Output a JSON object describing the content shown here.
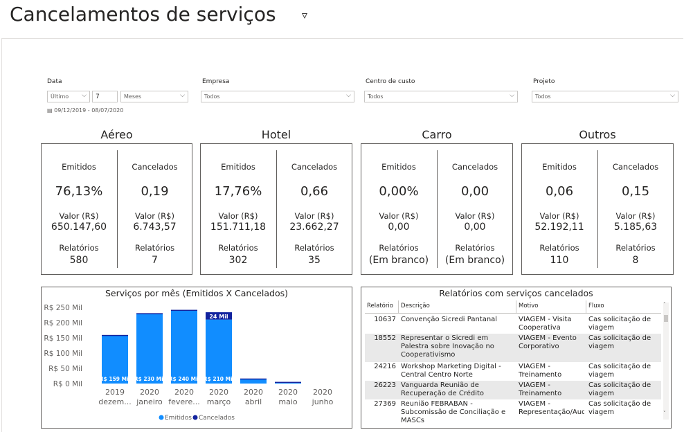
{
  "header": {
    "title": "Cancelamentos de serviços",
    "chevron": "▿"
  },
  "filters": {
    "data": {
      "label": "Data",
      "mode": "Último",
      "count": "7",
      "unit": "Meses",
      "range": "09/12/2019 - 08/07/2020"
    },
    "empresa": {
      "label": "Empresa",
      "value": "Todos"
    },
    "centro": {
      "label": "Centro de custo",
      "value": "Todos"
    },
    "projeto": {
      "label": "Projeto",
      "value": "Todos"
    }
  },
  "cards": [
    {
      "title": "Aéreo",
      "emitidos": {
        "label": "Emitidos",
        "pct": "76,13%",
        "valor_label": "Valor (R$)",
        "valor": "650.147,60",
        "rel_label": "Relatórios",
        "rel": "580"
      },
      "cancelados": {
        "label": "Cancelados",
        "pct": "0,19",
        "valor_label": "Valor (R$)",
        "valor": "6.743,57",
        "rel_label": "Relatórios",
        "rel": "7"
      }
    },
    {
      "title": "Hotel",
      "emitidos": {
        "label": "Emitidos",
        "pct": "17,76%",
        "valor_label": "Valor (R$)",
        "valor": "151.711,18",
        "rel_label": "Relatórios",
        "rel": "302"
      },
      "cancelados": {
        "label": "Cancelados",
        "pct": "0,66",
        "valor_label": "Valor (R$)",
        "valor": "23.662,27",
        "rel_label": "Relatórios",
        "rel": "35"
      }
    },
    {
      "title": "Carro",
      "emitidos": {
        "label": "Emitidos",
        "pct": "0,00%",
        "valor_label": "Valor (R$)",
        "valor": "0,00",
        "rel_label": "Relatórios",
        "rel": "(Em branco)"
      },
      "cancelados": {
        "label": "Cancelados",
        "pct": "0,00",
        "valor_label": "Valor (R$)",
        "valor": "0,00",
        "rel_label": "Relatórios",
        "rel": "(Em branco)"
      }
    },
    {
      "title": "Outros",
      "emitidos": {
        "label": "Emitidos",
        "pct": "0,06",
        "valor_label": "Valor (R$)",
        "valor": "52.192,11",
        "rel_label": "Relatórios",
        "rel": "110"
      },
      "cancelados": {
        "label": "Cancelados",
        "pct": "0,15",
        "valor_label": "Valor (R$)",
        "valor": "5.185,63",
        "rel_label": "Relatórios",
        "rel": "8"
      }
    }
  ],
  "chart_data": {
    "type": "bar",
    "title": "Serviços por mês (Emitidos X Cancelados)",
    "categories": [
      [
        "2019",
        "dezem..."
      ],
      [
        "2020",
        "janeiro"
      ],
      [
        "2020",
        "fevere..."
      ],
      [
        "2020",
        "março"
      ],
      [
        "2020",
        "abril"
      ],
      [
        "2020",
        "maio"
      ],
      [
        "2020",
        "junho"
      ]
    ],
    "series": [
      {
        "name": "Emitidos",
        "color": "#118dff",
        "values": [
          159,
          230,
          240,
          210,
          15,
          5,
          0
        ],
        "labels": [
          "R$ 159 Mil",
          "R$ 230 Mil",
          "R$ 240 Mil",
          "R$ 210 Mil",
          "",
          "",
          ""
        ]
      },
      {
        "name": "Cancelados",
        "color": "#12239e",
        "values": [
          0.5,
          1,
          2,
          24,
          1.5,
          0.5,
          0
        ],
        "labels": [
          "",
          "",
          "",
          "24 Mil",
          "",
          "",
          ""
        ]
      }
    ],
    "stacked": true,
    "ylim": [
      0,
      250
    ],
    "yticks": [
      0,
      50,
      100,
      150,
      200,
      250
    ],
    "ytick_labels": [
      "R$ 0 Mil",
      "R$ 50 Mil",
      "R$ 100 Mil",
      "R$ 150 Mil",
      "R$ 200 Mil",
      "R$ 250 Mil"
    ],
    "legend": "bottom-center",
    "grid": false
  },
  "table": {
    "title": "Relatórios com serviços cancelados",
    "columns": [
      "Relatório",
      "Descrição",
      "Motivo",
      "Fluxo"
    ],
    "rows": [
      {
        "id": "10637",
        "desc": "Convenção Sicredi Pantanal",
        "motivo": "VIAGEM - Visita Cooperativa",
        "fluxo": "Cas solicitação de viagem"
      },
      {
        "id": "18552",
        "desc": "Representar o Sicredi em Palestra sobre Inovação no Cooperativismo",
        "motivo": "VIAGEM - Evento Corporativo",
        "fluxo": "Cas solicitação de viagem"
      },
      {
        "id": "24216",
        "desc": "Workshop Marketing Digital - Central Centro Norte",
        "motivo": "VIAGEM - Treinamento",
        "fluxo": "Cas solicitação de viagem"
      },
      {
        "id": "26223",
        "desc": "Vanguarda Reunião de Recuperação de Crédito",
        "motivo": "VIAGEM - Treinamento",
        "fluxo": "Cas solicitação de viagem"
      },
      {
        "id": "27369",
        "desc": "Reunião FEBRABAN - Subcomissão de Conciliação e MASCs",
        "motivo": "VIAGEM - Representação/Audiência",
        "fluxo": "Cas solicitação de viagem"
      }
    ]
  }
}
